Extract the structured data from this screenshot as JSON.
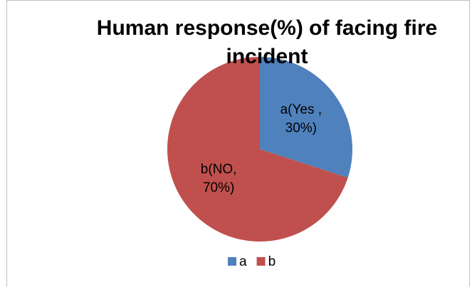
{
  "chart_data": {
    "type": "pie",
    "title": "Human response(%) of facing fire incident",
    "categories": [
      "a",
      "b"
    ],
    "values": [
      30,
      70
    ],
    "value_labels": [
      "a(Yes , 30%)",
      "b(NO, 70%)"
    ],
    "colors": [
      "#4f81bd",
      "#c0504d"
    ],
    "legend": "bottom"
  }
}
